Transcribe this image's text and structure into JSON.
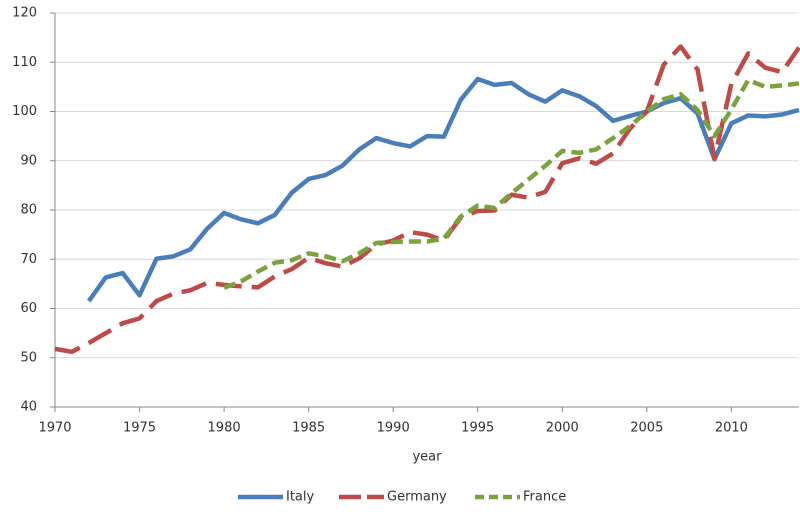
{
  "chart_data": {
    "type": "line",
    "x_label": "year",
    "x": [
      1970,
      1971,
      1972,
      1973,
      1974,
      1975,
      1976,
      1977,
      1978,
      1979,
      1980,
      1981,
      1982,
      1983,
      1984,
      1985,
      1986,
      1987,
      1988,
      1989,
      1990,
      1991,
      1992,
      1993,
      1994,
      1995,
      1996,
      1997,
      1998,
      1999,
      2000,
      2001,
      2002,
      2003,
      2004,
      2005,
      2006,
      2007,
      2008,
      2009,
      2010,
      2011,
      2012,
      2013,
      2014
    ],
    "series": [
      {
        "name": "Italy",
        "color": "#4a7ebb",
        "line_style": "solid",
        "values": [
          null,
          null,
          61.5,
          66.3,
          67.2,
          62.7,
          70.1,
          70.6,
          72,
          76.2,
          79.4,
          78.1,
          77.3,
          79,
          83.5,
          86.3,
          87.1,
          89,
          92.3,
          94.6,
          93.6,
          92.9,
          95,
          94.9,
          102.4,
          106.6,
          105.4,
          105.8,
          103.5,
          102,
          104.3,
          103.1,
          101.1,
          98.1,
          99.1,
          100,
          101.7,
          102.7,
          99.6,
          90.3,
          97.6,
          99.2,
          99,
          99.4,
          100.3
        ]
      },
      {
        "name": "Germany",
        "color": "#be4b48",
        "line_style": "long-dash",
        "values": [
          51.8,
          51.2,
          53,
          55,
          57,
          58,
          61.5,
          63,
          63.7,
          65.2,
          64.8,
          64.5,
          64.3,
          66.5,
          68,
          70.3,
          69.2,
          68.5,
          70.2,
          73,
          73.8,
          75.5,
          75,
          73.8,
          78.5,
          79.8,
          79.9,
          83.1,
          82.5,
          83.7,
          89.5,
          90.5,
          89.4,
          91.5,
          96.5,
          100,
          109.5,
          113.2,
          108.5,
          90.5,
          105.6,
          111.8,
          108.9,
          108,
          113
        ]
      },
      {
        "name": "France",
        "color": "#7aa33f",
        "line_style": "short-dash",
        "values": [
          null,
          null,
          null,
          null,
          null,
          null,
          null,
          null,
          null,
          null,
          64.2,
          65.5,
          67.5,
          69.3,
          69.8,
          71.2,
          70.6,
          69.6,
          71.2,
          73.3,
          73.5,
          73.6,
          73.6,
          74.2,
          78.7,
          80.9,
          80.4,
          83.4,
          86.2,
          89,
          92,
          91.6,
          92.3,
          94.6,
          97,
          100,
          102.5,
          103.5,
          100.3,
          95,
          100.4,
          106.4,
          105,
          105.3,
          105.7
        ]
      }
    ],
    "xlim": [
      1970,
      2014
    ],
    "xticks": [
      1970,
      1975,
      1980,
      1985,
      1990,
      1995,
      2000,
      2005,
      2010
    ],
    "ylim": [
      40,
      120
    ],
    "yticks": [
      40,
      50,
      60,
      70,
      80,
      90,
      100,
      110,
      120
    ],
    "grid": true,
    "legend": "bottom"
  }
}
